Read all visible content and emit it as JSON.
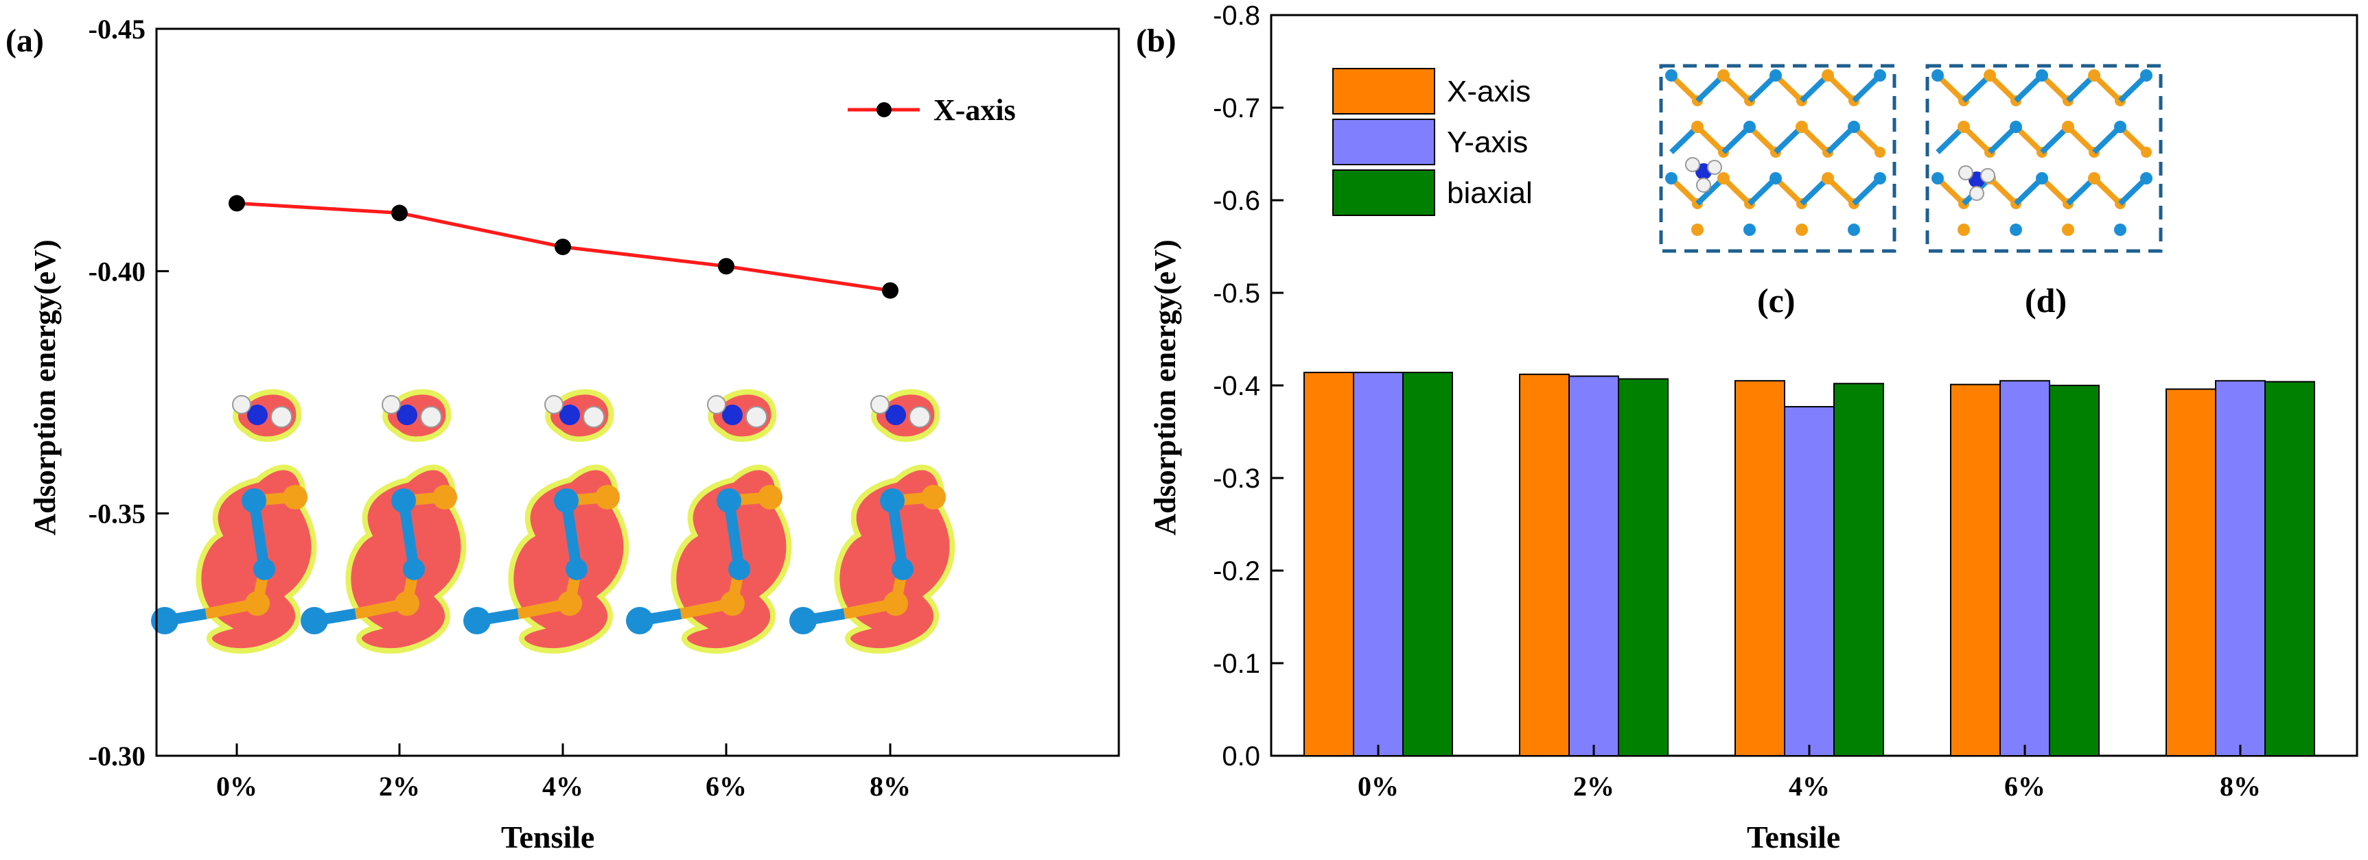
{
  "colors": {
    "line": "#ff1a1a",
    "marker": "#000000",
    "x_axis": "#ff8000",
    "y_axis": "#8080ff",
    "biaxial": "#008000",
    "cloud": "#f25a5a",
    "cloud_edge": "#e6f25a",
    "atom_blue": "#1a8fd6",
    "atom_orange": "#f2a01a",
    "atom_n": "#1a2fd6",
    "atom_h": "#f0f0f0",
    "inset_border": "#1f5f8f"
  },
  "chart_data": [
    {
      "panel": "(a)",
      "type": "line",
      "categories": [
        "0%",
        "2%",
        "4%",
        "6%",
        "8%"
      ],
      "series": [
        {
          "name": "X-axis",
          "values": [
            -0.414,
            -0.412,
            -0.405,
            -0.401,
            -0.396
          ]
        }
      ],
      "xlabel": "Tensile",
      "ylabel": "Adsorption energy(eV)",
      "ylim": [
        -0.3,
        -0.45
      ],
      "yticks": [
        -0.3,
        -0.35,
        -0.4,
        -0.45
      ],
      "ytick_labels": [
        "-0.30",
        "-0.35",
        "-0.40",
        "-0.45"
      ],
      "legend": "top-right",
      "inset": "charge-density isosurfaces of NH3 adsorbed on the layer at each strain"
    },
    {
      "panel": "(b)",
      "type": "bar",
      "categories": [
        "0%",
        "2%",
        "4%",
        "6%",
        "8%"
      ],
      "series": [
        {
          "name": "X-axis",
          "values": [
            -0.414,
            -0.412,
            -0.405,
            -0.401,
            -0.396
          ]
        },
        {
          "name": "Y-axis",
          "values": [
            -0.414,
            -0.41,
            -0.377,
            -0.405,
            -0.405
          ]
        },
        {
          "name": "biaxial",
          "values": [
            -0.414,
            -0.407,
            -0.402,
            -0.4,
            -0.404
          ]
        }
      ],
      "xlabel": "Tensile",
      "ylabel": "Adsorption energy(eV)",
      "ylim": [
        0.0,
        -0.8
      ],
      "yticks": [
        0.0,
        -0.1,
        -0.2,
        -0.3,
        -0.4,
        -0.5,
        -0.6,
        -0.7,
        -0.8
      ],
      "ytick_labels": [
        "0.0",
        "-0.1",
        "-0.2",
        "-0.3",
        "-0.4",
        "-0.5",
        "-0.6",
        "-0.7",
        "-0.8"
      ],
      "legend": "top-left",
      "insets": [
        "(c)",
        "(d)"
      ]
    }
  ]
}
